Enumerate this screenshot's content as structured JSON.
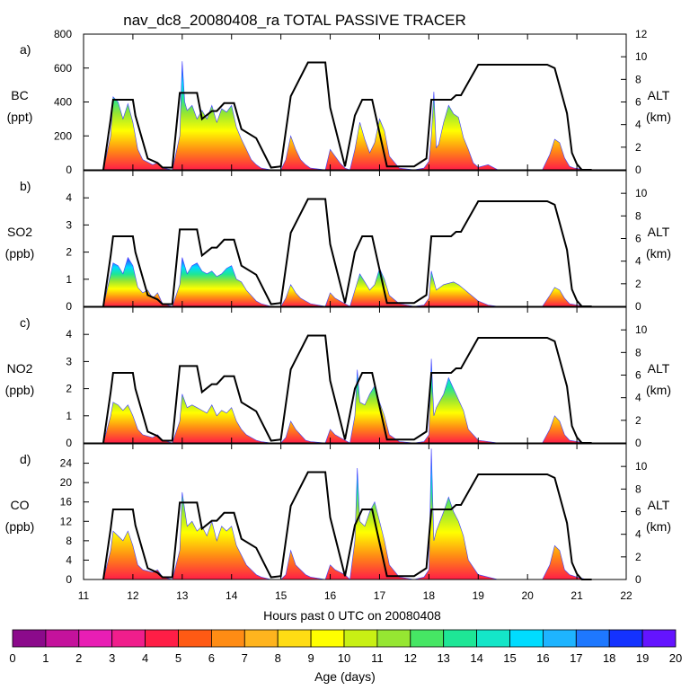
{
  "chart_data": {
    "type": "area",
    "title": "nav_dc8_20080408_ra TOTAL PASSIVE TRACER",
    "xlabel": "Hours past 0 UTC on 20080408",
    "xlim": [
      11,
      22
    ],
    "xticks": [
      11,
      12,
      13,
      14,
      15,
      16,
      17,
      18,
      19,
      20,
      21,
      22
    ],
    "right_axis": {
      "label": "ALT",
      "units": "(km)"
    },
    "flight_altitude_km": {
      "x": [
        11.4,
        11.55,
        11.6,
        11.9,
        12.0,
        12.05,
        12.3,
        12.5,
        12.6,
        12.8,
        12.95,
        13.05,
        13.3,
        13.4,
        13.6,
        13.7,
        13.85,
        14.05,
        14.2,
        14.5,
        14.8,
        15.0,
        15.2,
        15.55,
        15.65,
        15.9,
        16.0,
        16.3,
        16.5,
        16.65,
        16.85,
        17.15,
        17.45,
        17.7,
        17.95,
        18.05,
        18.15,
        18.45,
        18.55,
        18.65,
        19.0,
        20.4,
        20.55,
        20.8,
        20.9,
        21.0,
        21.1,
        21.3
      ],
      "y": [
        0,
        4.5,
        6.2,
        6.2,
        6.2,
        4.8,
        1.0,
        0.6,
        0.2,
        0.2,
        6.8,
        6.8,
        6.8,
        4.5,
        5.2,
        5.2,
        5.9,
        5.9,
        3.6,
        2.8,
        0.2,
        0.3,
        6.5,
        9.5,
        9.5,
        9.5,
        5.5,
        0.3,
        4.8,
        6.2,
        6.2,
        0.3,
        0.3,
        0.3,
        1.0,
        6.2,
        6.2,
        6.2,
        6.6,
        6.6,
        9.3,
        9.3,
        9.0,
        5.0,
        1.5,
        0.5,
        0.0,
        0.0
      ]
    },
    "panels": [
      {
        "label": "a)",
        "species": "BC",
        "units": "(ppt)",
        "ylim": [
          0,
          800
        ],
        "yticks": [
          "0",
          "200",
          "400",
          "600",
          "800"
        ],
        "alt_ylim": [
          0,
          12
        ],
        "alt_ticks": [
          "0",
          "2",
          "4",
          "6",
          "8",
          "10",
          "12"
        ],
        "tracer_total": {
          "x": [
            11.4,
            11.55,
            11.6,
            11.7,
            11.8,
            11.9,
            12.0,
            12.1,
            12.2,
            12.4,
            12.5,
            12.6,
            12.8,
            12.95,
            13.0,
            13.05,
            13.1,
            13.2,
            13.3,
            13.4,
            13.5,
            13.6,
            13.7,
            13.8,
            13.9,
            14.0,
            14.1,
            14.2,
            14.3,
            14.4,
            14.5,
            14.6,
            14.8,
            15.0,
            15.1,
            15.2,
            15.3,
            15.4,
            15.5,
            15.6,
            15.9,
            16.0,
            16.1,
            16.2,
            16.3,
            16.4,
            16.5,
            16.6,
            16.7,
            16.8,
            16.9,
            17.0,
            17.1,
            17.2,
            17.4,
            17.7,
            17.9,
            18.0,
            18.05,
            18.1,
            18.15,
            18.2,
            18.3,
            18.4,
            18.5,
            18.6,
            18.7,
            18.8,
            18.9,
            19.0,
            19.2,
            19.4,
            20.3,
            20.45,
            20.55,
            20.65,
            20.75,
            20.85,
            20.95,
            21.2
          ],
          "y": [
            0,
            200,
            430,
            400,
            300,
            390,
            280,
            120,
            60,
            30,
            40,
            10,
            0,
            200,
            640,
            400,
            350,
            380,
            300,
            350,
            300,
            380,
            280,
            360,
            340,
            380,
            250,
            180,
            120,
            60,
            30,
            10,
            0,
            0,
            60,
            200,
            120,
            60,
            30,
            10,
            0,
            120,
            80,
            40,
            10,
            0,
            120,
            280,
            180,
            100,
            160,
            300,
            230,
            80,
            10,
            0,
            10,
            50,
            200,
            460,
            130,
            150,
            280,
            380,
            330,
            310,
            190,
            120,
            40,
            15,
            30,
            0,
            0,
            90,
            180,
            160,
            70,
            20,
            10,
            0
          ]
        }
      },
      {
        "label": "b)",
        "species": "SO2",
        "units": "(ppb)",
        "ylim": [
          0,
          5
        ],
        "yticks": [
          "0",
          "1",
          "2",
          "3",
          "4"
        ],
        "alt_ylim": [
          0,
          12
        ],
        "alt_ticks": [
          "0",
          "2",
          "4",
          "6",
          "8",
          "10"
        ],
        "tracer_total": {
          "x": [
            11.4,
            11.55,
            11.6,
            11.7,
            11.8,
            11.9,
            12.0,
            12.1,
            12.2,
            12.3,
            12.4,
            12.5,
            12.6,
            12.8,
            12.95,
            13.0,
            13.1,
            13.2,
            13.3,
            13.4,
            13.5,
            13.6,
            13.7,
            13.8,
            13.9,
            14.0,
            14.1,
            14.2,
            14.3,
            14.4,
            14.5,
            14.6,
            14.8,
            15.0,
            15.1,
            15.2,
            15.3,
            15.4,
            15.5,
            15.6,
            15.9,
            16.0,
            16.1,
            16.2,
            16.3,
            16.4,
            16.5,
            16.6,
            16.7,
            16.8,
            16.9,
            17.0,
            17.1,
            17.2,
            17.4,
            17.7,
            17.9,
            18.0,
            18.05,
            18.15,
            18.3,
            18.5,
            18.6,
            18.8,
            19.0,
            19.2,
            19.4,
            20.3,
            20.45,
            20.55,
            20.65,
            20.75,
            20.85,
            21.0,
            21.2
          ],
          "y": [
            0,
            1.2,
            1.6,
            1.5,
            1.2,
            1.8,
            1.5,
            0.7,
            0.5,
            0.6,
            0.3,
            0.5,
            0.1,
            0,
            0.8,
            1.8,
            1.2,
            1.5,
            1.6,
            1.3,
            1.2,
            1.3,
            1.1,
            1.2,
            1.4,
            1.5,
            1.0,
            0.9,
            0.6,
            0.4,
            0.2,
            0.1,
            0,
            0,
            0.3,
            0.8,
            0.5,
            0.3,
            0.2,
            0.1,
            0,
            0.5,
            0.3,
            0.2,
            0.1,
            0,
            0.6,
            1.2,
            0.9,
            0.6,
            0.8,
            1.4,
            1.0,
            0.4,
            0.1,
            0,
            0.05,
            0.3,
            1.3,
            0.6,
            0.8,
            0.9,
            0.8,
            0.5,
            0.2,
            0.05,
            0,
            0,
            0.4,
            0.7,
            0.6,
            0.3,
            0.1,
            0.05,
            0
          ]
        }
      },
      {
        "label": "c)",
        "species": "NO2",
        "units": "(ppb)",
        "ylim": [
          0,
          5
        ],
        "yticks": [
          "0",
          "1",
          "2",
          "3",
          "4"
        ],
        "alt_ylim": [
          0,
          12
        ],
        "alt_ticks": [
          "0",
          "2",
          "4",
          "6",
          "8",
          "10"
        ],
        "tracer_total": {
          "x": [
            11.4,
            11.55,
            11.6,
            11.7,
            11.8,
            11.9,
            12.0,
            12.1,
            12.2,
            12.4,
            12.5,
            12.6,
            12.8,
            12.95,
            13.0,
            13.1,
            13.2,
            13.3,
            13.4,
            13.5,
            13.6,
            13.7,
            13.8,
            13.9,
            14.0,
            14.1,
            14.2,
            14.3,
            14.4,
            14.5,
            14.6,
            14.8,
            15.0,
            15.1,
            15.2,
            15.3,
            15.4,
            15.5,
            15.6,
            15.9,
            16.0,
            16.1,
            16.2,
            16.3,
            16.4,
            16.5,
            16.55,
            16.6,
            16.7,
            16.8,
            16.9,
            17.0,
            17.1,
            17.2,
            17.4,
            17.7,
            17.9,
            18.0,
            18.05,
            18.1,
            18.15,
            18.3,
            18.4,
            18.5,
            18.6,
            18.7,
            18.8,
            19.0,
            19.2,
            19.4,
            20.3,
            20.45,
            20.55,
            20.65,
            20.75,
            20.85,
            21.0,
            21.2
          ],
          "y": [
            0,
            1.0,
            1.5,
            1.4,
            1.2,
            1.4,
            1.0,
            0.5,
            0.3,
            0.2,
            0.3,
            0.1,
            0,
            0.8,
            1.8,
            1.3,
            1.4,
            1.3,
            1.2,
            1.1,
            1.4,
            1.0,
            1.2,
            1.1,
            1.3,
            0.8,
            0.5,
            0.3,
            0.2,
            0.1,
            0.05,
            0,
            0,
            0.2,
            0.8,
            0.5,
            0.3,
            0.1,
            0.05,
            0,
            0.5,
            0.3,
            0.2,
            0.1,
            0,
            1.0,
            2.7,
            1.5,
            1.4,
            1.8,
            2.1,
            1.5,
            1.0,
            0.3,
            0.05,
            0,
            0.05,
            0.3,
            3.1,
            1.0,
            1.3,
            1.8,
            2.4,
            2.0,
            1.6,
            1.2,
            0.5,
            0.1,
            0.05,
            0,
            0,
            0.5,
            1.0,
            0.8,
            0.3,
            0.1,
            0.05,
            0
          ]
        }
      },
      {
        "label": "d)",
        "species": "CO",
        "units": "(ppb)",
        "ylim": [
          0,
          28
        ],
        "yticks": [
          "0",
          "4",
          "8",
          "12",
          "16",
          "20",
          "24"
        ],
        "alt_ylim": [
          0,
          12
        ],
        "alt_ticks": [
          "0",
          "2",
          "4",
          "6",
          "8",
          "10"
        ],
        "tracer_total": {
          "x": [
            11.4,
            11.55,
            11.6,
            11.7,
            11.8,
            11.9,
            12.0,
            12.1,
            12.2,
            12.4,
            12.5,
            12.6,
            12.8,
            12.95,
            13.0,
            13.1,
            13.2,
            13.3,
            13.4,
            13.5,
            13.6,
            13.7,
            13.8,
            13.9,
            14.0,
            14.1,
            14.2,
            14.3,
            14.4,
            14.5,
            14.6,
            14.8,
            15.0,
            15.1,
            15.2,
            15.3,
            15.4,
            15.5,
            15.6,
            15.9,
            16.0,
            16.1,
            16.2,
            16.3,
            16.4,
            16.5,
            16.55,
            16.6,
            16.7,
            16.8,
            16.9,
            17.0,
            17.1,
            17.2,
            17.4,
            17.7,
            17.9,
            18.0,
            18.05,
            18.1,
            18.15,
            18.3,
            18.4,
            18.5,
            18.6,
            18.7,
            18.8,
            19.0,
            19.2,
            19.4,
            20.3,
            20.45,
            20.55,
            20.65,
            20.75,
            20.85,
            21.0,
            21.2
          ],
          "y": [
            0,
            6,
            10,
            9,
            8,
            10,
            7,
            3,
            2,
            1.5,
            2,
            0.5,
            0,
            6,
            18,
            11,
            12,
            10,
            11,
            9,
            12,
            8,
            11,
            10,
            11,
            7,
            5,
            3,
            2,
            1,
            0.5,
            0,
            0,
            1,
            6,
            3,
            2,
            1,
            0.5,
            0,
            3,
            2,
            1.5,
            1,
            0,
            8,
            23,
            12,
            11,
            14,
            16,
            12,
            8,
            3,
            0.5,
            0,
            0.5,
            2,
            27,
            8,
            10,
            14,
            17,
            14,
            12,
            9,
            4,
            1,
            0.5,
            0,
            0,
            3,
            7,
            6,
            2,
            1,
            0.5,
            0
          ]
        }
      }
    ],
    "colorbar": {
      "label": "Age (days)",
      "ticks": [
        "0",
        "1",
        "2",
        "3",
        "4",
        "5",
        "6",
        "7",
        "8",
        "9",
        "10",
        "11",
        "12",
        "13",
        "14",
        "15",
        "16",
        "17",
        "18",
        "19",
        "20"
      ],
      "colors": [
        "#8b0a8b",
        "#c4129c",
        "#e81eb4",
        "#f01e8c",
        "#ff1e46",
        "#ff5a14",
        "#ff8c14",
        "#ffb41e",
        "#ffdc14",
        "#ffff00",
        "#c8f014",
        "#96e632",
        "#46e664",
        "#1ee696",
        "#14e6c8",
        "#00dcff",
        "#1eb4ff",
        "#1e78ff",
        "#1432ff",
        "#6414ff"
      ]
    }
  }
}
